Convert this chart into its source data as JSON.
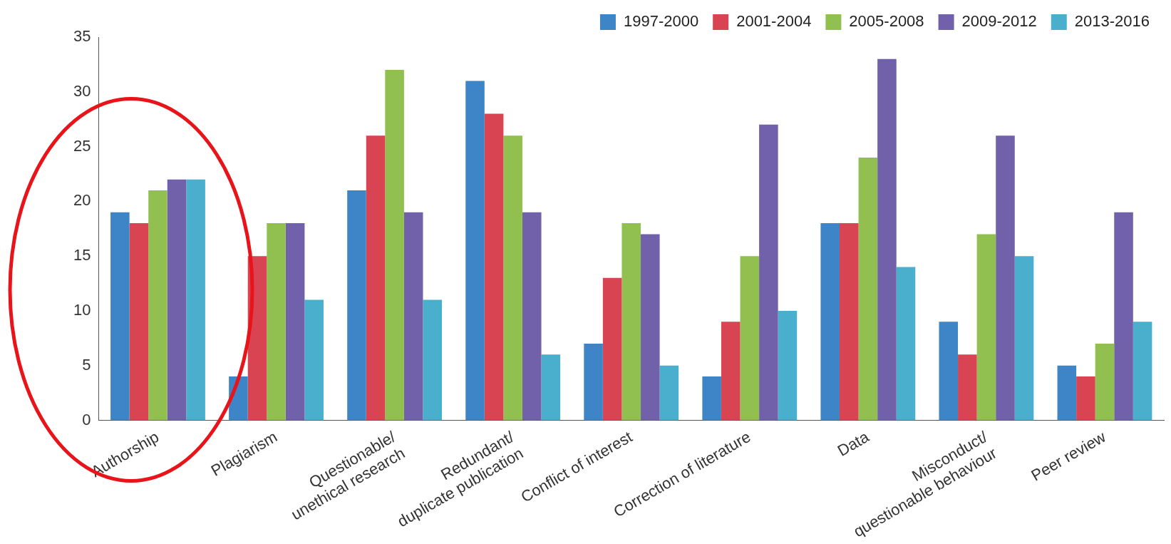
{
  "chart_data": {
    "type": "bar",
    "categories": [
      "Authorship",
      "Plagiarism",
      "Questionable/\nunethical research",
      "Redundant/\nduplicate publication",
      "Conflict of interest",
      "Correction of literature",
      "Data",
      "Misconduct/\nquestionable behaviour",
      "Peer review"
    ],
    "series": [
      {
        "name": "1997-2000",
        "color": "#3d85c6",
        "values": [
          19,
          4,
          21,
          31,
          7,
          4,
          18,
          9,
          5
        ]
      },
      {
        "name": "2001-2004",
        "color": "#d94452",
        "values": [
          18,
          15,
          26,
          28,
          13,
          9,
          18,
          6,
          4
        ]
      },
      {
        "name": "2005-2008",
        "color": "#92c050",
        "values": [
          21,
          18,
          32,
          26,
          18,
          15,
          24,
          17,
          7
        ]
      },
      {
        "name": "2009-2012",
        "color": "#7160aa",
        "values": [
          22,
          18,
          19,
          19,
          17,
          27,
          33,
          26,
          19
        ]
      },
      {
        "name": "2013-2016",
        "color": "#4aafcc",
        "values": [
          22,
          11,
          11,
          6,
          5,
          10,
          14,
          15,
          9
        ]
      }
    ],
    "ylim": [
      0,
      35
    ],
    "yticks": [
      0,
      5,
      10,
      15,
      20,
      25,
      30,
      35
    ],
    "grid": false,
    "legend": "top"
  }
}
